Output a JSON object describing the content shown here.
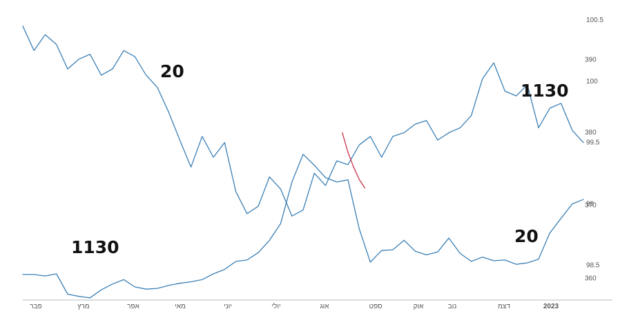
{
  "chart_data": {
    "type": "line",
    "x_tick_labels": [
      "פבר",
      "מרץ",
      "אפר",
      "מאי",
      "יוני",
      "יולי",
      "אוג",
      "ספט",
      "אוק",
      "נוב",
      "דצמ",
      "2023"
    ],
    "right_axis_a": {
      "ticks": [
        100.5,
        100,
        99.5,
        99,
        98.5
      ],
      "labels": [
        "100.5",
        "100",
        "99.5",
        "99",
        "98.5"
      ],
      "range": [
        98.3,
        100.55
      ]
    },
    "right_axis_b": {
      "ticks": [
        390,
        380,
        370,
        360
      ],
      "labels": [
        "390",
        "380",
        "370",
        "360"
      ],
      "range": [
        357,
        396
      ]
    },
    "annotations": [
      "20",
      "1130",
      "1130",
      "20"
    ],
    "colors": {
      "line": "#3a7fb5",
      "highlight": "#c9304a",
      "axis": "#bbbbbb",
      "tick_text": "#555555"
    },
    "series": [
      {
        "axis": "a",
        "x": [
          0,
          2,
          4,
          6,
          8,
          10,
          12,
          14,
          16,
          18,
          20,
          22,
          24,
          26,
          28,
          30,
          32,
          34,
          36,
          38,
          40,
          42,
          44,
          46,
          48,
          50,
          52,
          54,
          56,
          58,
          60,
          62,
          64,
          66,
          68,
          70,
          72,
          74,
          76,
          78,
          80,
          82,
          84,
          86,
          88,
          90,
          92,
          94,
          96,
          98,
          100
        ],
        "values": [
          100.45,
          100.25,
          100.38,
          100.3,
          100.1,
          100.18,
          100.22,
          100.05,
          100.1,
          100.25,
          100.2,
          100.05,
          99.95,
          99.75,
          99.52,
          99.3,
          99.55,
          99.38,
          99.5,
          99.1,
          98.92,
          98.98,
          99.22,
          99.12,
          98.9,
          98.95,
          99.25,
          99.15,
          99.35,
          99.32,
          99.48,
          99.55,
          99.38,
          99.55,
          99.58,
          99.65,
          99.68,
          99.52,
          99.58,
          99.62,
          99.72,
          100.02,
          100.15,
          99.92,
          99.88,
          99.97,
          99.62,
          99.78,
          99.82,
          99.6,
          99.5
        ]
      },
      {
        "axis": "b",
        "x": [
          0,
          2,
          4,
          6,
          8,
          10,
          12,
          14,
          16,
          18,
          20,
          22,
          24,
          26,
          28,
          30,
          32,
          34,
          36,
          38,
          40,
          42,
          44,
          46,
          48,
          50,
          52,
          54,
          56,
          58,
          60,
          62,
          64,
          66,
          68,
          70,
          72,
          74,
          76,
          78,
          80,
          82,
          84,
          86,
          88,
          90,
          92,
          94,
          96,
          98,
          100
        ],
        "values": [
          360.5,
          360.5,
          360.3,
          360.6,
          357.8,
          357.5,
          357.3,
          358.4,
          359.2,
          359.8,
          358.8,
          358.5,
          358.6,
          359.0,
          359.3,
          359.5,
          359.8,
          360.6,
          361.2,
          362.3,
          362.5,
          363.5,
          365.2,
          367.5,
          373.2,
          377.0,
          375.5,
          373.8,
          373.2,
          373.5,
          366.8,
          362.2,
          363.8,
          363.9,
          365.2,
          363.7,
          363.2,
          363.6,
          365.5,
          363.4,
          362.3,
          362.9,
          362.4,
          362.5,
          361.9,
          362.1,
          362.6,
          366.2,
          368.2,
          370.2,
          370.8
        ]
      }
    ],
    "highlight_segment": {
      "series": 0,
      "x": [
        57,
        58,
        59,
        60,
        61
      ],
      "values": [
        99.58,
        99.42,
        99.3,
        99.2,
        99.13
      ]
    }
  }
}
